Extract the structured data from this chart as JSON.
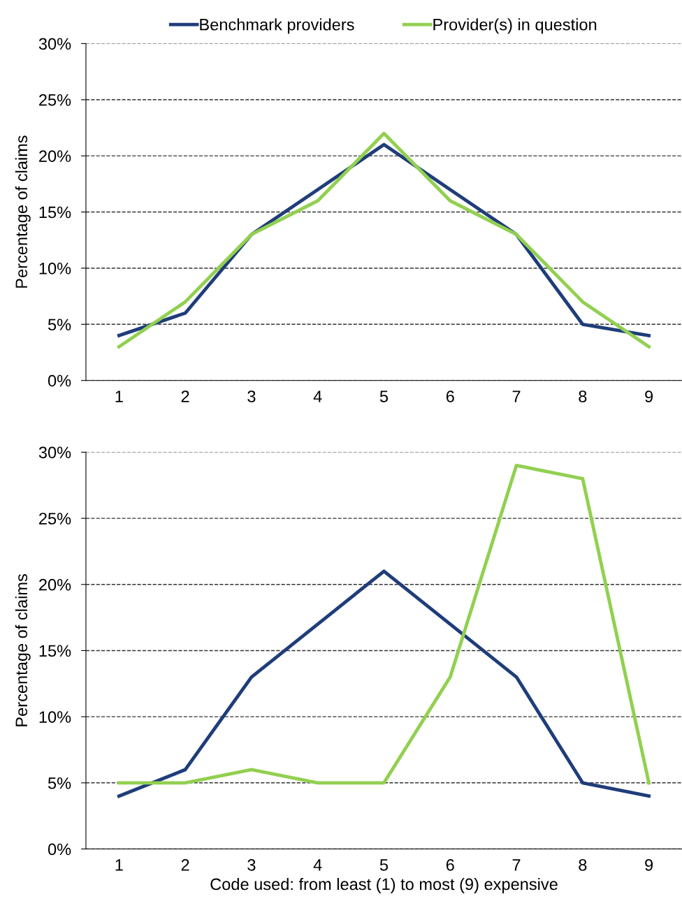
{
  "chart_data": [
    {
      "type": "line",
      "ylabel": "Percentage of claims",
      "categories": [
        "1",
        "2",
        "3",
        "4",
        "5",
        "6",
        "7",
        "8",
        "9"
      ],
      "series": [
        {
          "name": "Benchmark providers",
          "color": "#1f3d7a",
          "values": [
            4,
            6,
            13,
            17,
            21,
            17,
            13,
            5,
            4
          ]
        },
        {
          "name": "Provider(s) in question",
          "color": "#92d050",
          "values": [
            3,
            7,
            13,
            16,
            22,
            16,
            13,
            7,
            3
          ]
        }
      ],
      "ylim": [
        0,
        30
      ],
      "yticks": [
        {
          "value": 0,
          "label": "0%"
        },
        {
          "value": 5,
          "label": "5%"
        },
        {
          "value": 10,
          "label": "10%"
        },
        {
          "value": 15,
          "label": "15%"
        },
        {
          "value": 20,
          "label": "20%"
        },
        {
          "value": 25,
          "label": "25%"
        },
        {
          "value": 30,
          "label": "30%"
        }
      ],
      "grid": "y",
      "legend": "top",
      "line_style": "solid",
      "marker": "none"
    },
    {
      "type": "line",
      "ylabel": "Percentage of claims",
      "xlabel": "Code used: from least (1) to most (9) expensive",
      "categories": [
        "1",
        "2",
        "3",
        "4",
        "5",
        "6",
        "7",
        "8",
        "9"
      ],
      "series": [
        {
          "color": "#1f3d7a",
          "values": [
            4,
            6,
            13,
            17,
            21,
            17,
            13,
            5,
            4
          ]
        },
        {
          "color": "#92d050",
          "values": [
            5,
            5,
            6,
            5,
            5,
            13,
            29,
            28,
            5
          ]
        }
      ],
      "ylim": [
        0,
        30
      ],
      "yticks": [
        {
          "value": 0,
          "label": "0%"
        },
        {
          "value": 5,
          "label": "5%"
        },
        {
          "value": 10,
          "label": "10%"
        },
        {
          "value": 15,
          "label": "15%"
        },
        {
          "value": 20,
          "label": "20%"
        },
        {
          "value": 25,
          "label": "25%"
        },
        {
          "value": 30,
          "label": "30%"
        }
      ],
      "grid": "y",
      "line_style": "solid",
      "marker": "none"
    }
  ]
}
